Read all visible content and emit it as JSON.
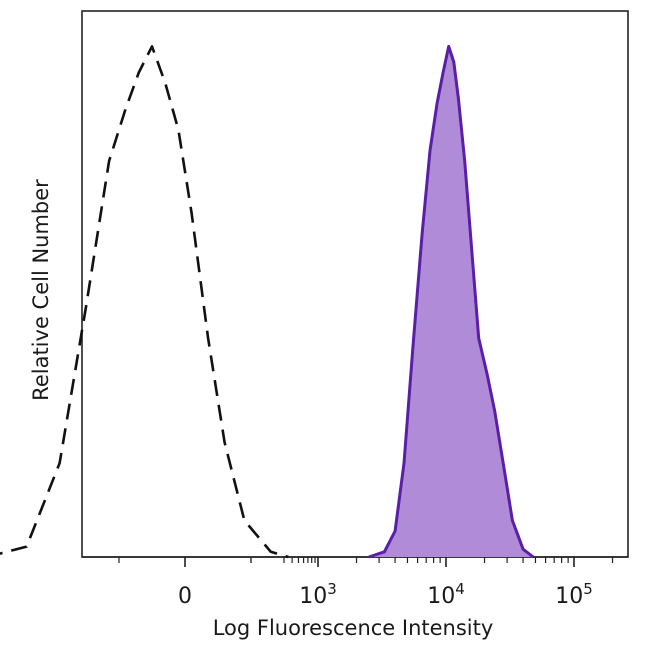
{
  "chart_data": {
    "type": "area",
    "title": "",
    "xlabel": "Log Fluorescence Intensity",
    "ylabel": "Relative Cell Number",
    "x_scale": "biexponential",
    "ylim": [
      0,
      1
    ],
    "grid": false,
    "legend": "none",
    "x_ticks": [
      {
        "value": 0,
        "base": "0",
        "exp": ""
      },
      {
        "value": 1000,
        "base": "10",
        "exp": "3"
      },
      {
        "value": 10000,
        "base": "10",
        "exp": "4"
      },
      {
        "value": 100000,
        "base": "10",
        "exp": "5"
      }
    ],
    "series": [
      {
        "style": "dashed",
        "color": "#111111",
        "fill": "none",
        "points": [
          [
            -600,
            0
          ],
          [
            -480,
            0.02
          ],
          [
            -380,
            0.18
          ],
          [
            -300,
            0.48
          ],
          [
            -230,
            0.76
          ],
          [
            -180,
            0.86
          ],
          [
            -140,
            0.93
          ],
          [
            -100,
            0.98
          ],
          [
            -60,
            0.91
          ],
          [
            -20,
            0.82
          ],
          [
            20,
            0.66
          ],
          [
            70,
            0.42
          ],
          [
            120,
            0.22
          ],
          [
            180,
            0.07
          ],
          [
            260,
            0.01
          ],
          [
            350,
            0
          ]
        ]
      },
      {
        "style": "solid",
        "color": "#5a1fa6",
        "fill": "#b08cd8",
        "points": [
          [
            2500,
            0
          ],
          [
            3300,
            0.01
          ],
          [
            4000,
            0.05
          ],
          [
            4700,
            0.18
          ],
          [
            5500,
            0.4
          ],
          [
            6500,
            0.62
          ],
          [
            7500,
            0.78
          ],
          [
            8500,
            0.87
          ],
          [
            9500,
            0.93
          ],
          [
            10500,
            0.98
          ],
          [
            11500,
            0.95
          ],
          [
            12500,
            0.88
          ],
          [
            14000,
            0.76
          ],
          [
            16000,
            0.58
          ],
          [
            18000,
            0.42
          ],
          [
            21000,
            0.35
          ],
          [
            24000,
            0.28
          ],
          [
            28000,
            0.18
          ],
          [
            33000,
            0.07
          ],
          [
            40000,
            0.015
          ],
          [
            48000,
            0
          ]
        ]
      }
    ]
  }
}
